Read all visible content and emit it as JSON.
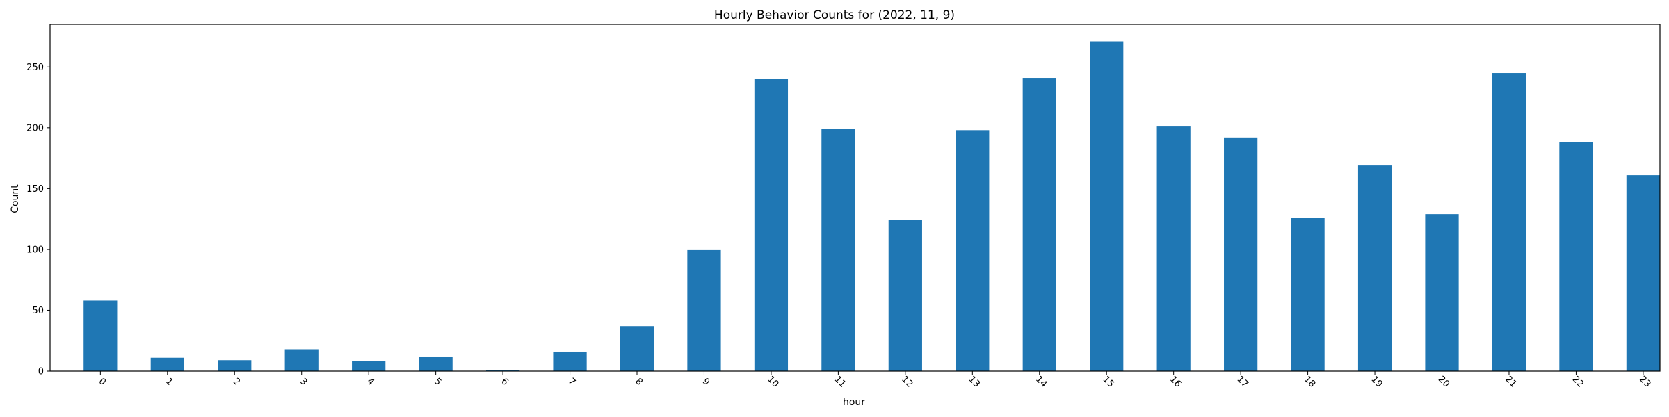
{
  "chart_data": {
    "type": "bar",
    "title": "Hourly Behavior Counts for (2022, 11, 9)",
    "xlabel": "hour",
    "ylabel": "Count",
    "categories": [
      "0",
      "1",
      "2",
      "3",
      "4",
      "5",
      "6",
      "7",
      "8",
      "9",
      "10",
      "11",
      "12",
      "13",
      "14",
      "15",
      "16",
      "17",
      "18",
      "19",
      "20",
      "21",
      "22",
      "23"
    ],
    "values": [
      58,
      11,
      9,
      18,
      8,
      12,
      1,
      16,
      37,
      100,
      240,
      199,
      124,
      198,
      241,
      271,
      201,
      192,
      126,
      169,
      129,
      245,
      188,
      161
    ],
    "ylim": [
      0,
      285
    ],
    "yticks": [
      0,
      50,
      100,
      150,
      200,
      250
    ],
    "grid": false,
    "legend": "none",
    "x_tick_rotation": "45deg",
    "bar_color": "#1f77b4"
  }
}
